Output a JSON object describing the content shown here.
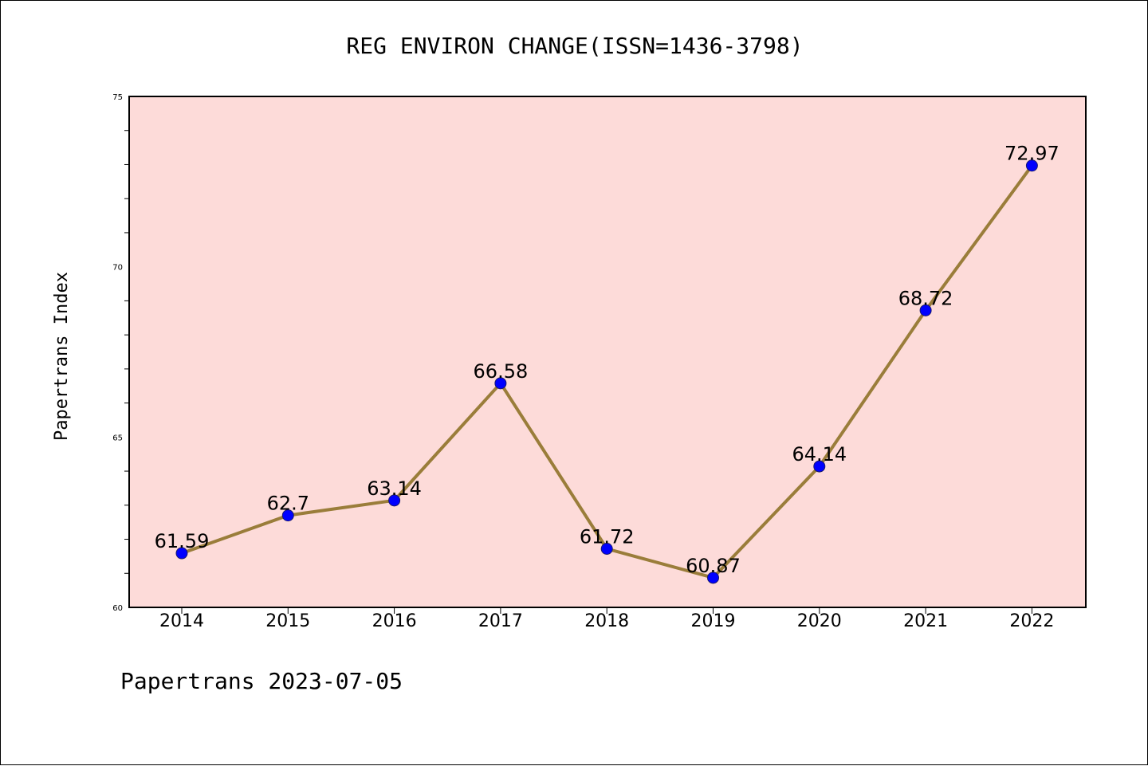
{
  "chart_data": {
    "type": "line",
    "title": "REG ENVIRON CHANGE(ISSN=1436-3798)",
    "ylabel": "Papertrans Index",
    "xlabel": "",
    "footer": "Papertrans 2023-07-05",
    "categories": [
      "2014",
      "2015",
      "2016",
      "2017",
      "2018",
      "2019",
      "2020",
      "2021",
      "2022"
    ],
    "series": [
      {
        "values": [
          61.59,
          62.7,
          63.14,
          66.58,
          61.72,
          60.87,
          64.14,
          68.72,
          72.97
        ]
      }
    ],
    "data_labels": [
      "61.59",
      "62.7",
      "63.14",
      "66.58",
      "61.72",
      "60.87",
      "64.14",
      "68.72",
      "72.97"
    ],
    "ylim": [
      60,
      75
    ],
    "yticks": [
      60,
      65,
      70,
      75
    ],
    "ytick_labels": [
      "60",
      "65",
      "70",
      "75"
    ],
    "grid": false,
    "legend": "none",
    "colors": {
      "plot_background": "#fddbd9",
      "line": "#9a7d3a",
      "marker": "#0000ff",
      "marker_edge": "#1a1a6e"
    }
  }
}
